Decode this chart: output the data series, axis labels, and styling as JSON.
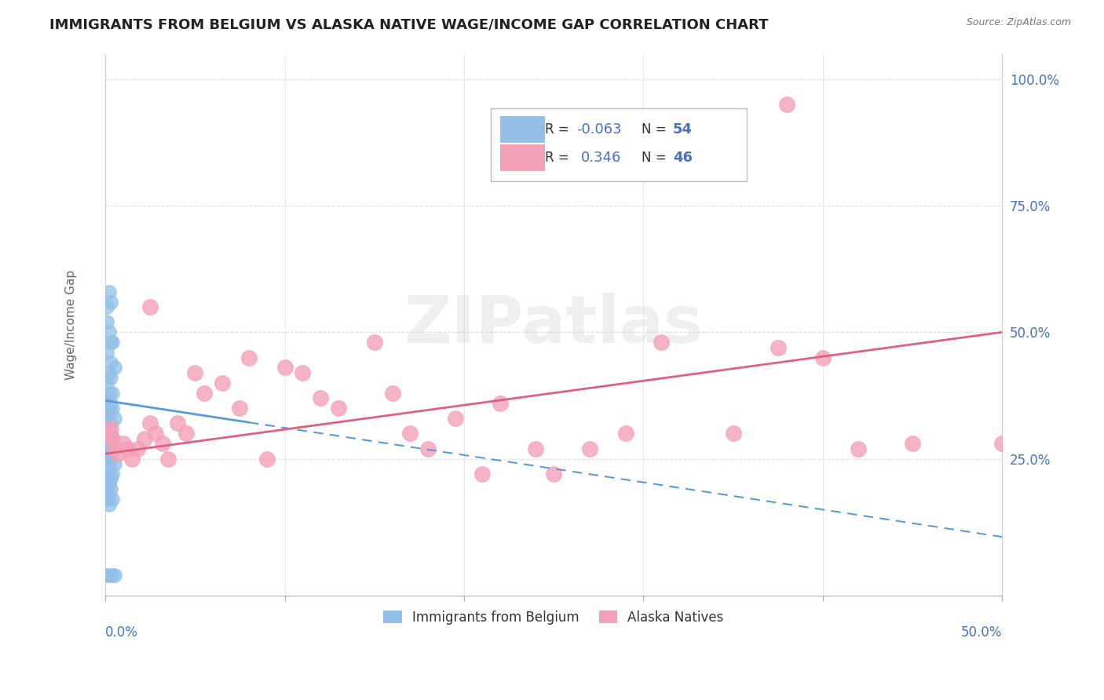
{
  "title": "IMMIGRANTS FROM BELGIUM VS ALASKA NATIVE WAGE/INCOME GAP CORRELATION CHART",
  "source": "Source: ZipAtlas.com",
  "ylabel": "Wage/Income Gap",
  "xlim": [
    0.0,
    0.5
  ],
  "ylim": [
    -0.02,
    1.05
  ],
  "blue_color": "#92C0E8",
  "pink_color": "#F4A0B8",
  "blue_line_color": "#5B9BD5",
  "pink_line_color": "#E06080",
  "text_color_blue": "#4472C4",
  "watermark": "ZIPatlas",
  "blue_line_x": [
    0.0,
    0.13
  ],
  "blue_line_y": [
    0.365,
    0.295
  ],
  "pink_line_x": [
    0.0,
    0.5
  ],
  "pink_line_y": [
    0.26,
    0.5
  ],
  "belgium_points": [
    [
      0.001,
      0.55
    ],
    [
      0.002,
      0.58
    ],
    [
      0.003,
      0.56
    ],
    [
      0.001,
      0.52
    ],
    [
      0.003,
      0.48
    ],
    [
      0.002,
      0.5
    ],
    [
      0.004,
      0.48
    ],
    [
      0.001,
      0.46
    ],
    [
      0.003,
      0.44
    ],
    [
      0.002,
      0.42
    ],
    [
      0.005,
      0.43
    ],
    [
      0.003,
      0.41
    ],
    [
      0.001,
      0.4
    ],
    [
      0.002,
      0.38
    ],
    [
      0.004,
      0.38
    ],
    [
      0.001,
      0.37
    ],
    [
      0.003,
      0.36
    ],
    [
      0.002,
      0.35
    ],
    [
      0.001,
      0.34
    ],
    [
      0.004,
      0.35
    ],
    [
      0.002,
      0.34
    ],
    [
      0.001,
      0.33
    ],
    [
      0.003,
      0.32
    ],
    [
      0.005,
      0.33
    ],
    [
      0.002,
      0.31
    ],
    [
      0.001,
      0.31
    ],
    [
      0.003,
      0.3
    ],
    [
      0.002,
      0.3
    ],
    [
      0.004,
      0.29
    ],
    [
      0.001,
      0.29
    ],
    [
      0.003,
      0.28
    ],
    [
      0.002,
      0.28
    ],
    [
      0.001,
      0.27
    ],
    [
      0.004,
      0.27
    ],
    [
      0.003,
      0.26
    ],
    [
      0.002,
      0.26
    ],
    [
      0.001,
      0.25
    ],
    [
      0.003,
      0.25
    ],
    [
      0.005,
      0.24
    ],
    [
      0.002,
      0.23
    ],
    [
      0.004,
      0.22
    ],
    [
      0.001,
      0.22
    ],
    [
      0.003,
      0.21
    ],
    [
      0.002,
      0.2
    ],
    [
      0.001,
      0.19
    ],
    [
      0.003,
      0.19
    ],
    [
      0.002,
      0.18
    ],
    [
      0.004,
      0.17
    ],
    [
      0.001,
      0.02
    ],
    [
      0.002,
      0.02
    ],
    [
      0.004,
      0.02
    ],
    [
      0.005,
      0.02
    ],
    [
      0.001,
      0.17
    ],
    [
      0.002,
      0.16
    ]
  ],
  "alaska_points": [
    [
      0.002,
      0.3
    ],
    [
      0.003,
      0.31
    ],
    [
      0.004,
      0.29
    ],
    [
      0.005,
      0.27
    ],
    [
      0.007,
      0.26
    ],
    [
      0.01,
      0.28
    ],
    [
      0.012,
      0.27
    ],
    [
      0.015,
      0.25
    ],
    [
      0.018,
      0.27
    ],
    [
      0.022,
      0.29
    ],
    [
      0.025,
      0.32
    ],
    [
      0.028,
      0.3
    ],
    [
      0.032,
      0.28
    ],
    [
      0.025,
      0.55
    ],
    [
      0.035,
      0.25
    ],
    [
      0.04,
      0.32
    ],
    [
      0.045,
      0.3
    ],
    [
      0.05,
      0.42
    ],
    [
      0.055,
      0.38
    ],
    [
      0.065,
      0.4
    ],
    [
      0.075,
      0.35
    ],
    [
      0.08,
      0.45
    ],
    [
      0.09,
      0.25
    ],
    [
      0.1,
      0.43
    ],
    [
      0.11,
      0.42
    ],
    [
      0.12,
      0.37
    ],
    [
      0.13,
      0.35
    ],
    [
      0.15,
      0.48
    ],
    [
      0.16,
      0.38
    ],
    [
      0.17,
      0.3
    ],
    [
      0.18,
      0.27
    ],
    [
      0.195,
      0.33
    ],
    [
      0.21,
      0.22
    ],
    [
      0.22,
      0.36
    ],
    [
      0.24,
      0.27
    ],
    [
      0.25,
      0.22
    ],
    [
      0.27,
      0.27
    ],
    [
      0.29,
      0.3
    ],
    [
      0.31,
      0.48
    ],
    [
      0.35,
      0.3
    ],
    [
      0.375,
      0.47
    ],
    [
      0.38,
      0.95
    ],
    [
      0.4,
      0.45
    ],
    [
      0.42,
      0.27
    ],
    [
      0.45,
      0.28
    ],
    [
      0.5,
      0.28
    ]
  ]
}
